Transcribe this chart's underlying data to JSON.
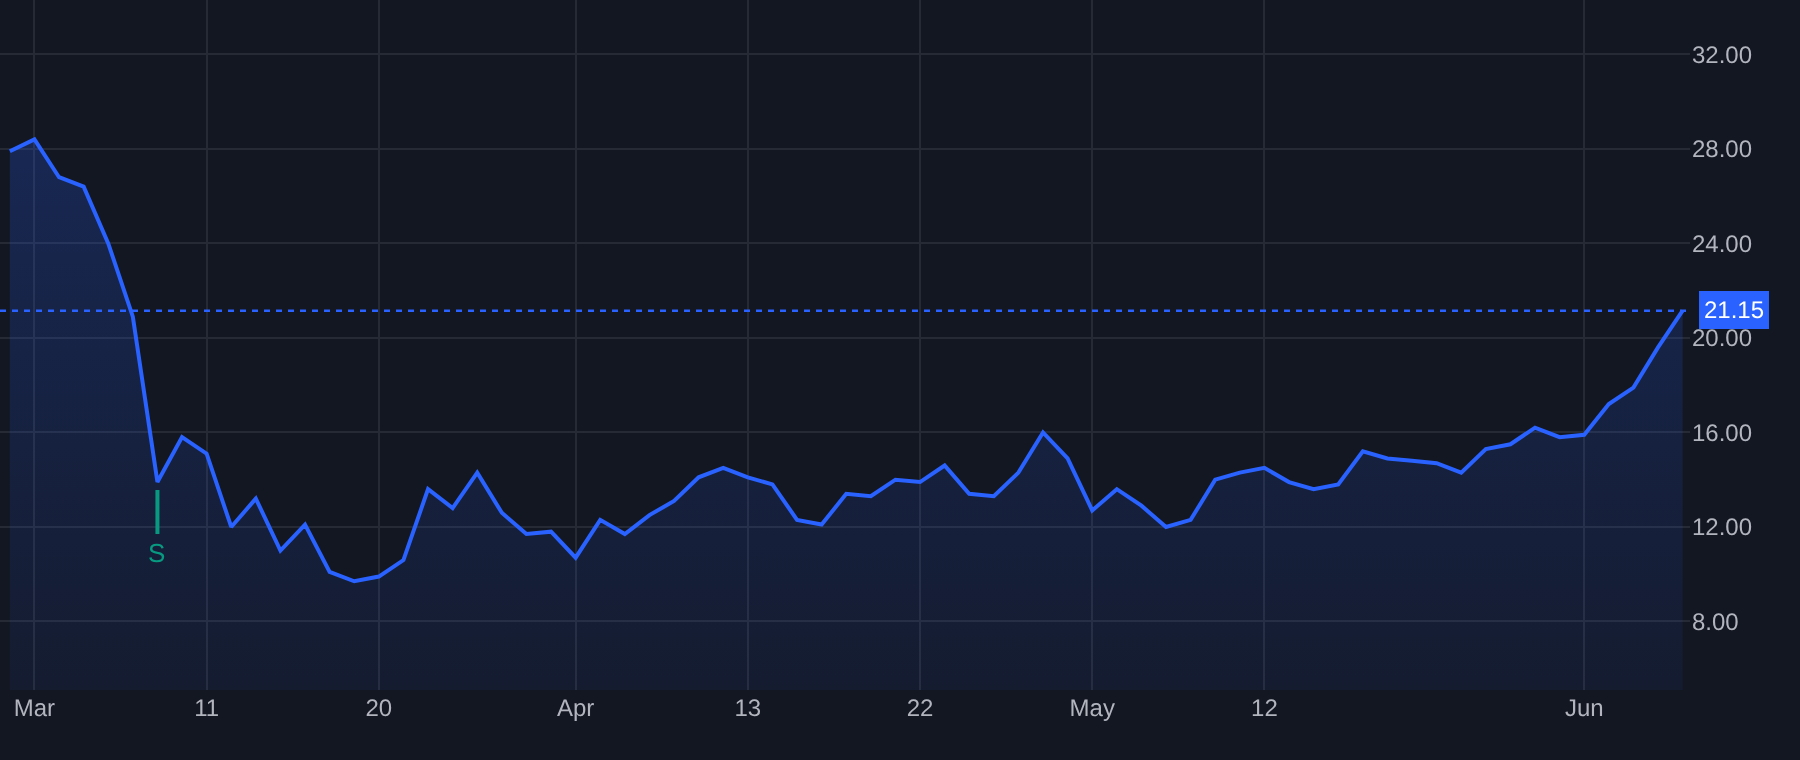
{
  "chart_data": {
    "type": "area",
    "categories": [
      null,
      "Mar",
      null,
      null,
      null,
      null,
      null,
      null,
      "11",
      null,
      null,
      null,
      null,
      null,
      null,
      "20",
      null,
      null,
      null,
      null,
      null,
      null,
      null,
      "Apr",
      null,
      null,
      null,
      null,
      null,
      null,
      "13",
      null,
      null,
      null,
      null,
      null,
      null,
      "22",
      null,
      null,
      null,
      null,
      null,
      null,
      "May",
      null,
      null,
      null,
      null,
      null,
      null,
      "12",
      null,
      null,
      null,
      null,
      null,
      null,
      null,
      null,
      null,
      null,
      null,
      null,
      "Jun",
      null,
      null,
      null,
      null
    ],
    "series": [
      {
        "color": "#2962ff",
        "values": [
          27.9,
          28.4,
          26.8,
          26.4,
          24.0,
          20.9,
          13.9,
          15.8,
          15.1,
          12.0,
          13.2,
          11.0,
          12.1,
          10.1,
          9.7,
          9.9,
          10.6,
          13.6,
          12.8,
          14.3,
          12.6,
          11.7,
          11.8,
          10.7,
          12.3,
          11.7,
          12.5,
          13.1,
          14.1,
          14.5,
          14.1,
          13.8,
          12.3,
          12.1,
          13.4,
          13.3,
          14.0,
          13.9,
          14.6,
          13.4,
          13.3,
          14.3,
          16.0,
          14.9,
          12.7,
          13.6,
          12.9,
          12.0,
          12.3,
          14.0,
          14.3,
          14.5,
          13.9,
          13.6,
          13.8,
          15.2,
          14.9,
          14.8,
          14.7,
          14.3,
          15.3,
          15.5,
          16.2,
          15.8,
          15.9,
          17.2,
          17.9,
          19.6,
          21.15
        ]
      }
    ],
    "ylim": [
      5.1,
      34.3
    ],
    "yticks": [
      {
        "value": 8,
        "label": "8.00"
      },
      {
        "value": 12,
        "label": "12.00"
      },
      {
        "value": 16,
        "label": "16.00"
      },
      {
        "value": 20,
        "label": "20.00"
      },
      {
        "value": 24,
        "label": "24.00"
      },
      {
        "value": 28,
        "label": "28.00"
      },
      {
        "value": 32,
        "label": "32.00"
      }
    ],
    "ref_lines": [
      {
        "axis": "y",
        "value": 21.15,
        "label": "21.15",
        "color": "#2962ff",
        "line_style": "dotted"
      }
    ],
    "annotations": [
      {
        "text": "S",
        "y": 13.9
      }
    ],
    "grid": true,
    "marker": "none",
    "line_style": "solid"
  }
}
